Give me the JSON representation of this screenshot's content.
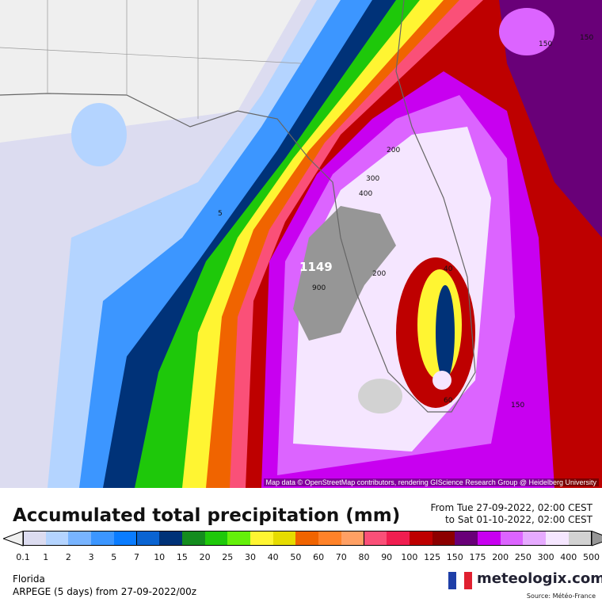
{
  "map": {
    "attribution": "Map data © OpenStreetMap contributors, rendering GIScience Research Group @ Heidelberg University",
    "contour_labels": [
      "5",
      "200",
      "300",
      "400",
      "1149",
      "900",
      "200",
      "40",
      "60",
      "150",
      "150",
      "150"
    ]
  },
  "legend": {
    "title": "Accumulated total precipitation (mm)",
    "period_from": "From Tue 27-09-2022, 02:00 CEST",
    "period_to": "to Sat 01-10-2022, 02:00 CEST",
    "ticks": [
      "0.1",
      "1",
      "2",
      "3",
      "5",
      "7",
      "10",
      "15",
      "20",
      "25",
      "30",
      "40",
      "50",
      "60",
      "70",
      "80",
      "90",
      "100",
      "125",
      "150",
      "175",
      "200",
      "250",
      "300",
      "400",
      "500"
    ],
    "colors": [
      "#dcdcf0",
      "#b4d4ff",
      "#78b4ff",
      "#3c96ff",
      "#0a7cff",
      "#0a64d2",
      "#003278",
      "#148c1e",
      "#1ec80a",
      "#64f00a",
      "#fff532",
      "#e6dc00",
      "#f06400",
      "#ff8228",
      "#ffa064",
      "#fa5078",
      "#f01e50",
      "#be0000",
      "#8c0000",
      "#690078",
      "#c800f0",
      "#dc64ff",
      "#e6aaff",
      "#f5e6ff",
      "#d2d2d2"
    ],
    "below_color": "#f0f0f0",
    "above_color": "#969696"
  },
  "footer": {
    "region": "Florida",
    "model": "ARPEGE (5 days) from  27-09-2022/00z",
    "logo": "meteologix.com",
    "source": "Source: Météo-France"
  }
}
